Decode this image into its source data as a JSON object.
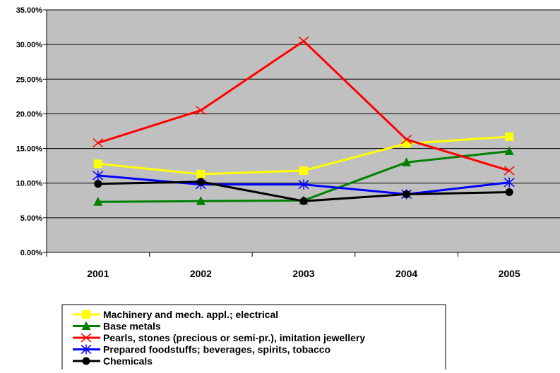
{
  "chart_data": {
    "type": "line",
    "title": "",
    "xlabel": "",
    "ylabel": "",
    "categories": [
      "2001",
      "2002",
      "2003",
      "2004",
      "2005"
    ],
    "ylim": [
      0,
      35
    ],
    "yticks": [
      0,
      5,
      10,
      15,
      20,
      25,
      30,
      35
    ],
    "ytick_labels": [
      "0.00%",
      "5.00%",
      "10.00%",
      "15.00%",
      "20.00%",
      "25.00%",
      "30.00%",
      "35.00%"
    ],
    "grid": true,
    "plot_background": "#c0c0c0",
    "legend_position": "bottom",
    "series": [
      {
        "name": "Machinery and mech. appl.; electrical",
        "values": [
          12.8,
          11.3,
          11.8,
          15.7,
          16.7
        ],
        "color": "#ffff00",
        "marker": "square"
      },
      {
        "name": "Base metals",
        "values": [
          7.3,
          7.4,
          7.5,
          13.0,
          14.6
        ],
        "color": "#008000",
        "marker": "triangle"
      },
      {
        "name": "Pearls, stones (precious or semi-pr.), imitation jewellery",
        "values": [
          15.8,
          20.5,
          30.5,
          16.3,
          11.8
        ],
        "color": "#ff0000",
        "marker": "x"
      },
      {
        "name": "Prepared foodstuffs; beverages, spirits, tobacco",
        "values": [
          11.1,
          9.8,
          9.8,
          8.4,
          10.1
        ],
        "color": "#0000ff",
        "marker": "star"
      },
      {
        "name": "Chemicals",
        "values": [
          9.9,
          10.2,
          7.4,
          8.4,
          8.7
        ],
        "color": "#000000",
        "marker": "circle"
      }
    ]
  }
}
